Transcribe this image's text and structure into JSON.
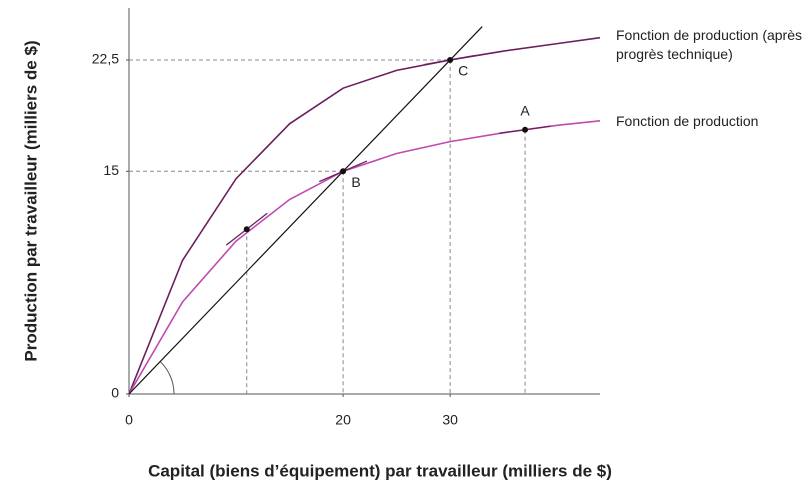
{
  "chart_data": {
    "type": "line",
    "xlabel": "Capital (biens d’équipement) par travailleur (milliers de $)",
    "ylabel": "Production par travailleur (milliers de $)",
    "xlim": [
      0,
      44
    ],
    "ylim": [
      0,
      26
    ],
    "xticks": [
      0,
      20,
      30
    ],
    "yticks": [
      0,
      15,
      {
        "value": 22.5,
        "label": "22,5"
      }
    ],
    "series": [
      {
        "name": "Fonction de production (après progrès technique)",
        "color": "#6b1f5e",
        "x": [
          0,
          5,
          10,
          15,
          20,
          25,
          30,
          35,
          40,
          44
        ],
        "values": [
          0,
          9,
          14.5,
          18.2,
          20.6,
          21.8,
          22.5,
          23.1,
          23.6,
          24.0
        ]
      },
      {
        "name": "Fonction de production",
        "color": "#c04bb0",
        "x": [
          0,
          5,
          10,
          15,
          20,
          25,
          30,
          35,
          40,
          44
        ],
        "values": [
          0,
          6.2,
          10.3,
          13.1,
          15,
          16.2,
          17.0,
          17.6,
          18.1,
          18.4
        ]
      },
      {
        "color": "#111111",
        "x": [
          0,
          33
        ],
        "values": [
          0,
          24.75
        ]
      }
    ],
    "points": {
      "labels": [
        "A",
        "B",
        "C",
        null
      ],
      "x": [
        37,
        20,
        30,
        11
      ],
      "values": [
        17.8,
        15,
        22.5,
        11.1
      ],
      "color": "#111111"
    }
  }
}
